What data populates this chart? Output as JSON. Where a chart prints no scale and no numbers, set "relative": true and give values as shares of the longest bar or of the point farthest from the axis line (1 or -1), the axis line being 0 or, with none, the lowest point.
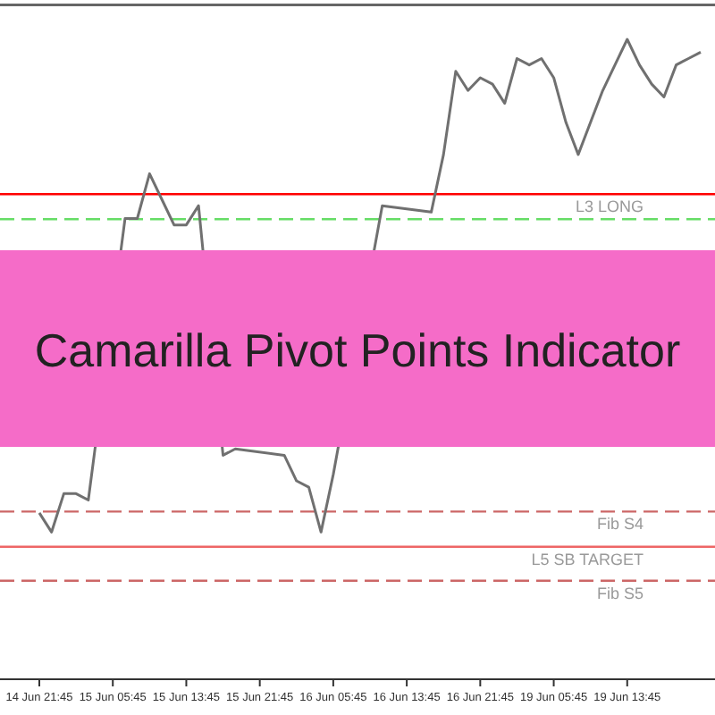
{
  "chart_data": {
    "type": "line",
    "title": "Camarilla Pivot Points Indicator",
    "relative": true,
    "tick_labels": "x",
    "line_style": "solid",
    "categories": [
      "14 Jun 21:45",
      null,
      null,
      null,
      null,
      null,
      "15 Jun 05:45",
      null,
      null,
      null,
      null,
      null,
      "15 Jun 13:45",
      null,
      null,
      null,
      null,
      null,
      "15 Jun 21:45",
      null,
      null,
      null,
      null,
      null,
      "16 Jun 05:45",
      null,
      null,
      null,
      null,
      null,
      "16 Jun 13:45",
      null,
      null,
      null,
      null,
      null,
      "16 Jun 21:45",
      null,
      null,
      null,
      null,
      null,
      "19 Jun 05:45",
      null,
      null,
      null,
      null,
      null,
      "19 Jun 13:45",
      null,
      null,
      null,
      null,
      null,
      null
    ],
    "ref_lines": [
      {
        "axis": "y",
        "value": 0.758,
        "label": null,
        "color": "#ff0000",
        "line_style": "solid"
      },
      {
        "axis": "y",
        "value": 0.719,
        "label": "L3 LONG",
        "color": "#66dd66",
        "line_style": "dashed"
      },
      {
        "axis": "y",
        "value": 0.262,
        "label": "Fib S4",
        "color": "#cc6666",
        "line_style": "dashed"
      },
      {
        "axis": "y",
        "value": 0.207,
        "label": "L5 SB TARGET",
        "color": "#ee6666",
        "line_style": "solid"
      },
      {
        "axis": "y",
        "value": 0.154,
        "label": "Fib S5",
        "color": "#cc6666",
        "line_style": "dashed"
      }
    ],
    "series": [
      {
        "color": "#707070",
        "values": [
          0.26,
          0.23,
          0.29,
          0.29,
          0.28,
          null,
          null,
          0.72,
          0.72,
          0.79,
          0.75,
          0.71,
          0.71,
          0.74,
          null,
          0.35,
          0.36,
          null,
          null,
          null,
          0.35,
          0.31,
          0.3,
          0.23,
          0.32,
          null,
          null,
          null,
          0.74,
          null,
          null,
          null,
          0.73,
          0.82,
          0.95,
          0.92,
          0.94,
          0.93,
          0.9,
          0.97,
          0.96,
          0.97,
          0.94,
          0.87,
          0.82,
          0.87,
          0.92,
          0.96,
          1,
          0.96,
          0.93,
          0.91,
          0.96,
          0.97,
          0.98
        ]
      }
    ]
  }
}
